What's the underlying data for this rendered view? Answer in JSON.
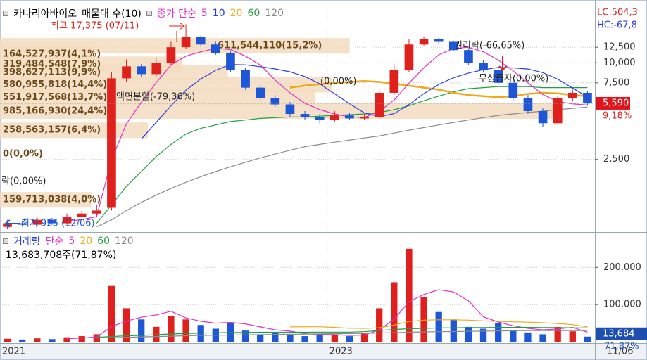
{
  "chart_data": [
    {
      "type": "candlestick",
      "title": "카나리아바이오",
      "subtitle": "매물대 수(10)",
      "legend_prefix": "종가 단순",
      "categories": [
        "2021",
        null,
        null,
        null,
        null,
        null,
        null,
        null,
        null,
        null,
        null,
        null,
        null,
        null,
        null,
        null,
        null,
        null,
        null,
        null,
        null,
        null,
        "2023",
        null,
        null,
        null,
        null,
        null,
        null,
        null,
        null,
        null,
        null,
        null,
        null,
        null,
        null,
        null,
        null,
        null
      ],
      "last_date": "11/06",
      "open": [
        950,
        1000,
        980,
        1050,
        1000,
        1100,
        1150,
        1250,
        8000,
        9500,
        8500,
        10000,
        12500,
        14500,
        13000,
        11500,
        9000,
        7000,
        6000,
        5500,
        4800,
        4600,
        4400,
        4700,
        4500,
        4600,
        6500,
        9000,
        13000,
        14000,
        13500,
        12000,
        10000,
        9000,
        7500,
        6000,
        5000,
        4200,
        6000,
        6500
      ],
      "high": [
        1050,
        1030,
        1100,
        1080,
        1150,
        1200,
        1300,
        8800,
        10500,
        9800,
        10800,
        13500,
        17375,
        14800,
        13500,
        11800,
        9300,
        7300,
        6300,
        5700,
        5000,
        4800,
        5000,
        4900,
        4800,
        6900,
        9800,
        14000,
        14500,
        14300,
        13700,
        12300,
        10400,
        9300,
        7800,
        6300,
        5200,
        6200,
        6800,
        6700
      ],
      "low": [
        925,
        950,
        960,
        980,
        980,
        1080,
        1120,
        1200,
        7600,
        8200,
        8200,
        9700,
        12200,
        12700,
        11200,
        8700,
        6800,
        5800,
        5300,
        4600,
        4400,
        4200,
        4300,
        4400,
        4400,
        4500,
        6300,
        8800,
        12800,
        13000,
        11800,
        9700,
        8700,
        7300,
        5800,
        4800,
        4000,
        4100,
        5800,
        5400
      ],
      "close": [
        1000,
        980,
        1050,
        1000,
        1100,
        1150,
        1200,
        8000,
        9500,
        8500,
        10000,
        12500,
        14500,
        13000,
        11500,
        9000,
        7000,
        6000,
        5500,
        4800,
        4600,
        4400,
        4700,
        4500,
        4600,
        6500,
        9000,
        13000,
        14000,
        13500,
        12000,
        10000,
        9000,
        7500,
        6000,
        5000,
        4200,
        6000,
        6500,
        5590
      ],
      "up_color": "#e0201c",
      "down_color": "#1e56d8",
      "series": [
        {
          "name": "5",
          "color": "#e030c8",
          "values": [
            null,
            null,
            null,
            null,
            1026,
            1056,
            1100,
            2490,
            4170,
            5670,
            7500,
            9700,
            11000,
            11700,
            12300,
            12100,
            11000,
            9700,
            7800,
            6500,
            5600,
            5100,
            4800,
            4600,
            4560,
            4980,
            5860,
            7460,
            9320,
            11200,
            12300,
            12500,
            11700,
            10400,
            8900,
            7500,
            6340,
            5740,
            5540,
            5460
          ]
        },
        {
          "name": "10",
          "color": "#2a3ee0",
          "values": [
            null,
            null,
            null,
            null,
            null,
            null,
            null,
            null,
            null,
            3348,
            4248,
            5400,
            6745,
            7935,
            8975,
            9760,
            9710,
            9460,
            9160,
            8790,
            8200,
            7390,
            6410,
            5560,
            4870,
            4620,
            4820,
            5480,
            6430,
            7330,
            8070,
            8630,
            9060,
            9360,
            9300,
            9150,
            8680,
            7900,
            6960,
            6130
          ]
        },
        {
          "name": "20",
          "color": "#f0a818",
          "values": [
            null,
            null,
            null,
            null,
            null,
            null,
            null,
            null,
            null,
            null,
            null,
            null,
            null,
            null,
            null,
            null,
            null,
            null,
            null,
            7000,
            7200,
            7350,
            7500,
            7600,
            7700,
            7600,
            7400,
            7200,
            7000,
            6800,
            6500,
            6300,
            6200,
            6100,
            6200,
            6400,
            6500,
            6450,
            6300,
            6200
          ]
        },
        {
          "name": "60",
          "color": "#1fa040",
          "values": [
            null,
            null,
            null,
            null,
            null,
            null,
            1000,
            1300,
            1700,
            2100,
            2600,
            3100,
            3600,
            3900,
            4100,
            4300,
            4400,
            4500,
            4550,
            4600,
            4600,
            4650,
            4700,
            4750,
            4800,
            4900,
            5100,
            5400,
            5800,
            6200,
            6600,
            6900,
            7000,
            7100,
            7100,
            7100,
            7000,
            7000,
            7000,
            7000
          ]
        },
        {
          "name": "120",
          "color": "#8a8a8a",
          "values": [
            null,
            null,
            null,
            null,
            null,
            null,
            950,
            1050,
            1200,
            1350,
            1500,
            1650,
            1800,
            1950,
            2100,
            2250,
            2400,
            2550,
            2700,
            2850,
            3000,
            3100,
            3200,
            3300,
            3400,
            3500,
            3650,
            3800,
            3950,
            4100,
            4250,
            4400,
            4550,
            4700,
            4800,
            4900,
            5000,
            5100,
            5200,
            5300
          ]
        }
      ],
      "log_scale": true,
      "grid": true,
      "ylim": [
        900,
        22700
      ],
      "yticks": [
        {
          "value": 2500,
          "label": "2,500"
        },
        {
          "value": 7500,
          "label": "7,500"
        },
        {
          "value": 10000,
          "label": "10,000"
        },
        {
          "value": 12500,
          "label": "12,500"
        }
      ],
      "last_price": {
        "value": 5590,
        "label": "5,590"
      },
      "last_change": "9,18%",
      "info": [
        "LC:504,3",
        "HC:-67,8"
      ],
      "annotations": [
        "최고 17,375 (07/11)",
        "최저 925 (12/06)",
        "권리락(-66,65%)",
        "무상증자(0,00%)",
        "액면분할(-79,36%)",
        "락(0,00%)",
        "(0,00%)"
      ],
      "volume_profile": {
        "color": "#f3dcbf",
        "levels": [
          12750,
          11300,
          9800,
          8700,
          7300,
          6100,
          5000,
          3800,
          2700,
          1400
        ],
        "values": [
          611544110,
          164527937,
          319484548,
          398627113,
          580955818,
          551917568,
          985166930,
          258563157,
          0,
          159713038
        ],
        "value_labels": [
          "611,544,110(15,2%)",
          "164,527,937(4,1%)",
          "319,484,548(7,9%)",
          "398,627,113(9,9%)",
          "580,955,818(14,4%)",
          "551,917,568(13,7%)",
          "985,166,930(24,4%)",
          "258,563,157(6,4%)",
          "0(0,0%)",
          "159,713,038(4,0%)"
        ]
      }
    },
    {
      "type": "bar",
      "title": "거래량",
      "legend_prefix": "단순",
      "subtitle": "13,683,708주(71,87%)",
      "values": [
        8000,
        6000,
        9000,
        7000,
        12000,
        15000,
        20000,
        150000,
        90000,
        60000,
        40000,
        70000,
        60000,
        45000,
        35000,
        50000,
        30000,
        20000,
        25000,
        18000,
        15000,
        20000,
        17000,
        15000,
        22000,
        90000,
        160000,
        250000,
        120000,
        80000,
        60000,
        40000,
        35000,
        50000,
        30000,
        25000,
        20000,
        40000,
        28000,
        13684
      ],
      "series": [
        {
          "name": "5",
          "color": "#e030c8",
          "values": [
            null,
            null,
            null,
            null,
            8400,
            9800,
            12600,
            40800,
            55400,
            65800,
            72000,
            82000,
            64000,
            55000,
            50000,
            52000,
            48000,
            40000,
            32000,
            28600,
            21600,
            19600,
            19000,
            17000,
            17800,
            31800,
            60800,
            107400,
            127400,
            140000,
            134000,
            110000,
            67000,
            53000,
            43000,
            36000,
            32000,
            34600,
            38600,
            25340
          ]
        },
        {
          "name": "20",
          "color": "#f0a818",
          "values": [
            null,
            null,
            null,
            null,
            null,
            null,
            null,
            null,
            null,
            null,
            null,
            null,
            null,
            null,
            null,
            null,
            null,
            null,
            null,
            40000,
            40300,
            40300,
            38500,
            36400,
            35900,
            37700,
            44700,
            54500,
            58000,
            59000,
            59000,
            58100,
            56000,
            54700,
            53600,
            52600,
            51000,
            49000,
            46000,
            40000
          ]
        },
        {
          "name": "60",
          "color": "#1fa040",
          "values": [
            null,
            null,
            null,
            null,
            null,
            null,
            12000,
            14000,
            16000,
            17000,
            19000,
            21000,
            22000,
            23000,
            24000,
            25000,
            25000,
            25500,
            25500,
            25500,
            25500,
            26000,
            26000,
            26000,
            27000,
            30000,
            33000,
            35000,
            36000,
            37000,
            37500,
            38000,
            38000,
            38500,
            38500,
            38500,
            38000,
            38000,
            37500,
            37000
          ]
        },
        {
          "name": "120",
          "color": "#8a8a8a",
          "values": [
            null,
            null,
            null,
            null,
            null,
            null,
            10000,
            11000,
            12000,
            13000,
            14000,
            15000,
            16000,
            17000,
            17500,
            18000,
            18500,
            19000,
            19500,
            20000,
            20500,
            21000,
            21500,
            22000,
            22500,
            23500,
            24500,
            25500,
            26500,
            27000,
            27500,
            28000,
            28500,
            29000,
            29500,
            30000,
            30000,
            30000,
            30000,
            30000
          ]
        }
      ],
      "grid": true,
      "ylim": [
        0,
        280000
      ],
      "yticks": [
        {
          "value": 100000,
          "label": "100,000"
        },
        {
          "value": 200000,
          "label": "200,000"
        }
      ],
      "last_volume": {
        "value": 13684,
        "label": "13,684"
      },
      "last_ratio": "71,87%"
    }
  ]
}
